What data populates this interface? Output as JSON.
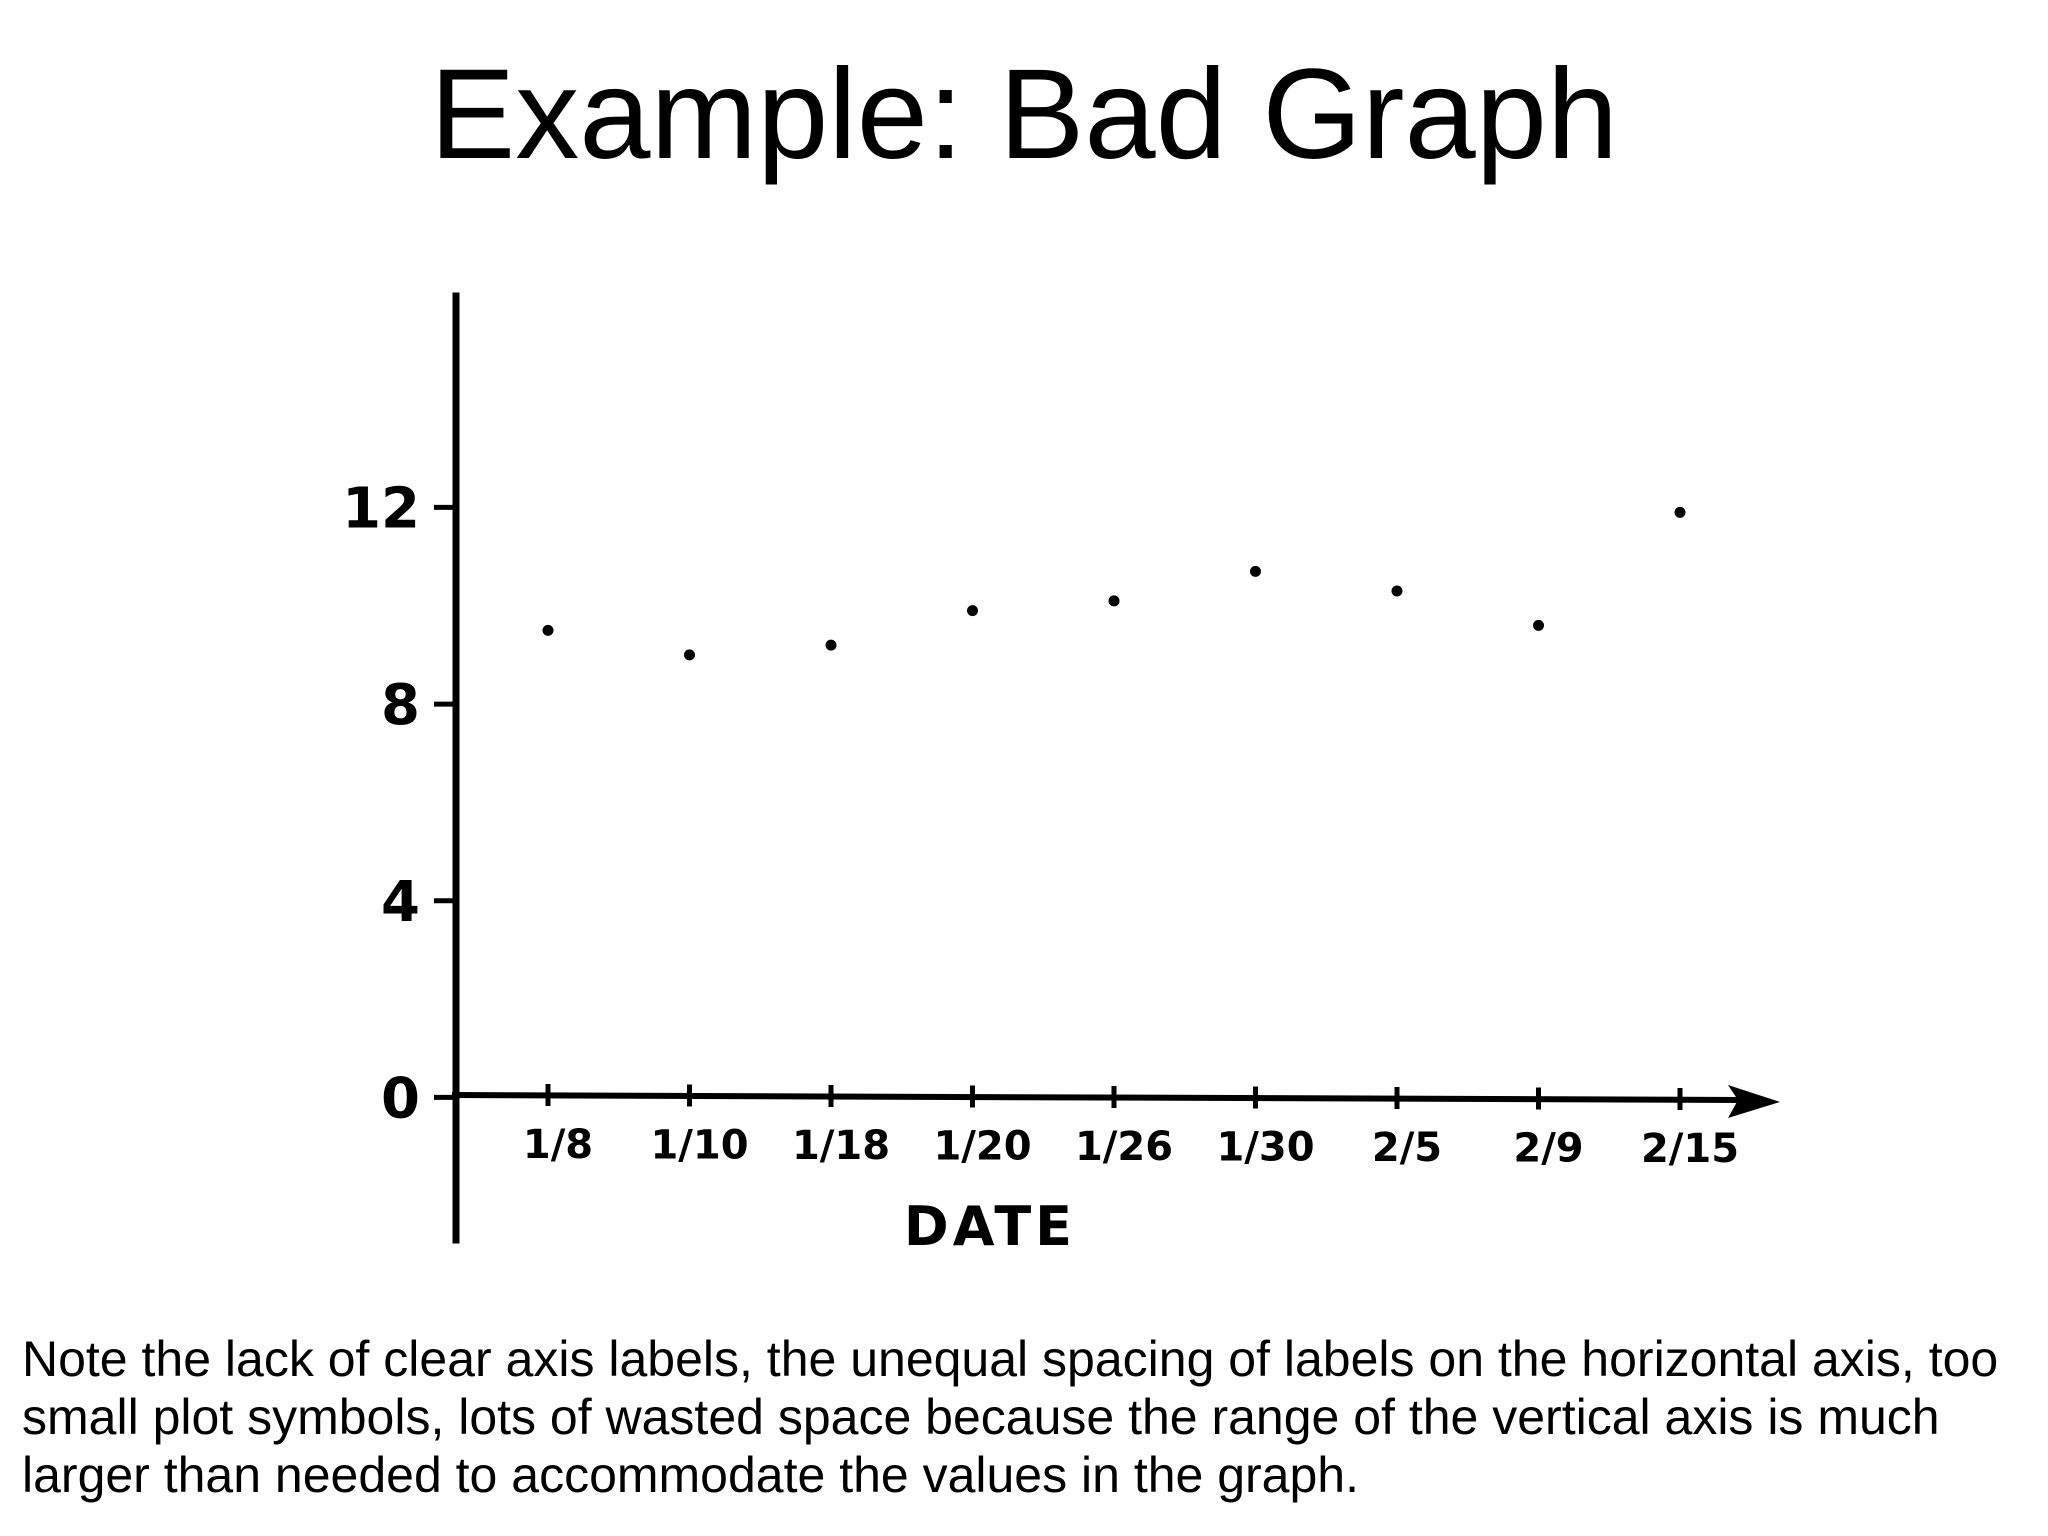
{
  "slide": {
    "title": "Example: Bad Graph",
    "caption": "Note the lack of clear axis labels, the unequal spacing of labels on the horizontal axis, too small plot symbols, lots of wasted space because the range of the vertical axis is much larger than needed to accommodate the values in the graph."
  },
  "chart_data": {
    "type": "scatter",
    "title": "",
    "xlabel": "DATE",
    "ylabel": "",
    "categories": [
      "1/8",
      "1/10",
      "1/18",
      "1/20",
      "1/26",
      "1/30",
      "2/5",
      "2/9",
      "2/15"
    ],
    "values": [
      9.5,
      9.0,
      9.2,
      9.9,
      10.1,
      10.7,
      10.3,
      9.6,
      11.9
    ],
    "yticks": [
      0,
      4,
      8,
      12
    ],
    "ylim": [
      -2.9,
      16.3
    ],
    "grid": false,
    "legend": "none",
    "color": "#000000"
  }
}
